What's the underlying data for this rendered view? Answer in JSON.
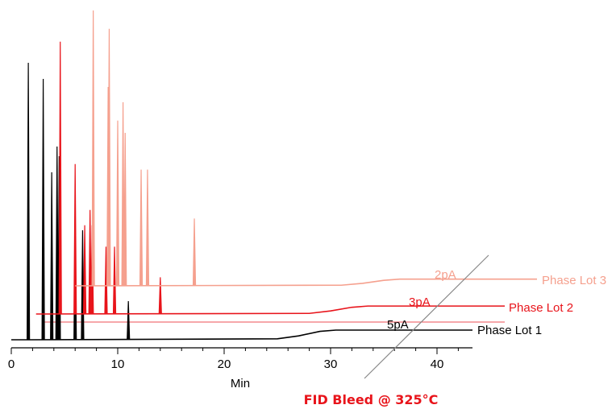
{
  "chart_data": {
    "type": "line",
    "title": "FID Bleed @ 325°C",
    "xlabel": "Min",
    "ylabel": "",
    "xlim": [
      0,
      43
    ],
    "x_ticks": [
      0,
      10,
      20,
      30,
      40
    ],
    "grid": false,
    "legend": "inline labels at right end of each trace",
    "colors": {
      "title": "#e8141b",
      "axis": "#000000",
      "diagonal": "#888888"
    },
    "series": [
      {
        "name": "Phase Lot 1",
        "scale_label": "5pA",
        "color": "#000000",
        "baseline_x": [
          1.6,
          25,
          27,
          29,
          30.5,
          43
        ],
        "baseline_y": [
          0,
          0.3,
          1.2,
          2.6,
          3.0,
          3.0
        ],
        "peaks": [
          {
            "x": 1.6,
            "height": 86
          },
          {
            "x": 3.0,
            "height": 81
          },
          {
            "x": 3.8,
            "height": 52
          },
          {
            "x": 4.3,
            "height": 60
          },
          {
            "x": 4.5,
            "height": 57
          },
          {
            "x": 6.0,
            "height": 37
          },
          {
            "x": 6.7,
            "height": 34
          },
          {
            "x": 11.0,
            "height": 12
          }
        ]
      },
      {
        "name": "Phase Lot 2",
        "scale_label": "3pA",
        "color": "#e8141b",
        "baseline_x": [
          3,
          28,
          30,
          32,
          33.5,
          46
        ],
        "baseline_y": [
          0,
          0.2,
          1.0,
          2.2,
          2.6,
          2.6
        ],
        "peaks": [
          {
            "x": 4.6,
            "height": 89
          },
          {
            "x": 6.0,
            "height": 49
          },
          {
            "x": 6.9,
            "height": 29
          },
          {
            "x": 7.4,
            "height": 34
          },
          {
            "x": 7.6,
            "height": 29
          },
          {
            "x": 8.9,
            "height": 22
          },
          {
            "x": 9.7,
            "height": 22
          },
          {
            "x": 14.0,
            "height": 12
          }
        ]
      },
      {
        "name": "Phase Lot 3",
        "scale_label": "2pA",
        "color": "#f5a08e",
        "baseline_x": [
          6,
          31,
          33,
          35,
          36.5,
          49
        ],
        "baseline_y": [
          0,
          0.2,
          0.8,
          1.8,
          2.2,
          2.2
        ],
        "peaks": [
          {
            "x": 7.7,
            "height": 90
          },
          {
            "x": 9.2,
            "height": 84
          },
          {
            "x": 9.1,
            "height": 65
          },
          {
            "x": 10.0,
            "height": 54
          },
          {
            "x": 10.5,
            "height": 60
          },
          {
            "x": 10.7,
            "height": 50
          },
          {
            "x": 12.2,
            "height": 38
          },
          {
            "x": 12.8,
            "height": 38
          },
          {
            "x": 17.2,
            "height": 22
          }
        ]
      }
    ]
  }
}
